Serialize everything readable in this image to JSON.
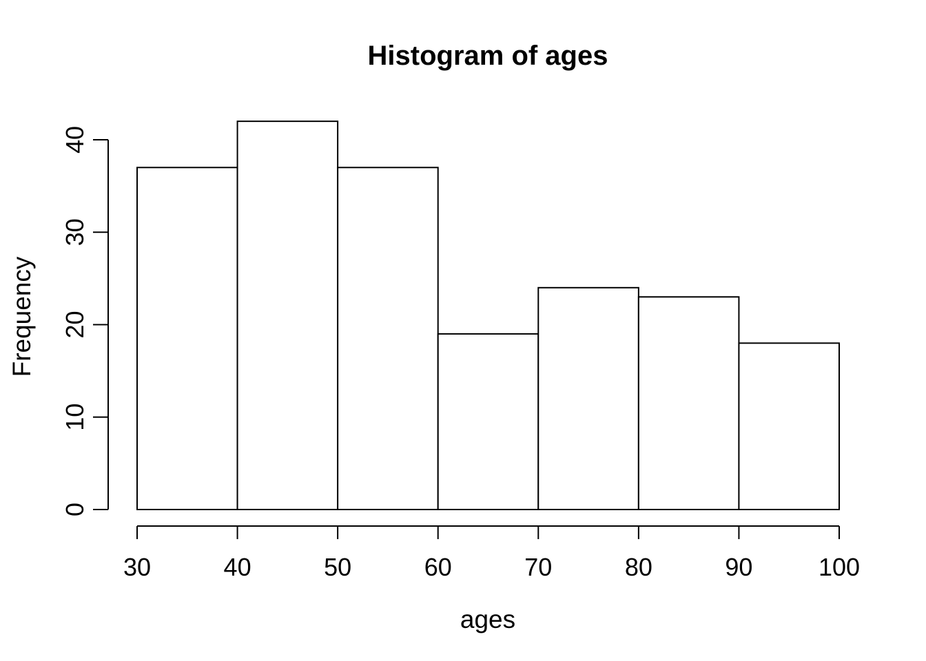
{
  "chart_data": {
    "type": "bar",
    "subtype": "histogram",
    "title": "Histogram of ages",
    "xlabel": "ages",
    "ylabel": "Frequency",
    "bin_edges": [
      30,
      40,
      50,
      60,
      70,
      80,
      90,
      100
    ],
    "counts": [
      37,
      42,
      37,
      19,
      24,
      23,
      18
    ],
    "x_ticks": [
      30,
      40,
      50,
      60,
      70,
      80,
      90,
      100
    ],
    "y_ticks": [
      0,
      10,
      20,
      30,
      40
    ],
    "xlim": [
      30,
      100
    ],
    "ylim": [
      0,
      42
    ],
    "grid": false,
    "legend_position": "none",
    "bar_fill_color": "#ffffff",
    "line_color": "#000000",
    "text_color": "#000000",
    "background_color": "#ffffff"
  }
}
